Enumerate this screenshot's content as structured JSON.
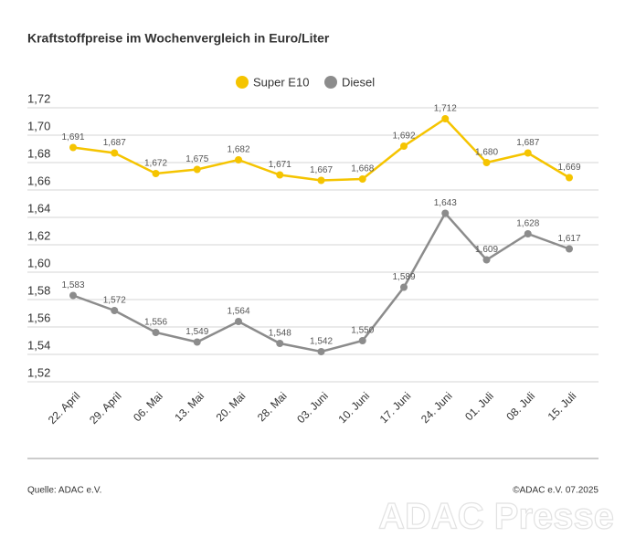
{
  "chart_data": {
    "type": "line",
    "title": "Kraftstoffpreise im Wochenvergleich in Euro/Liter",
    "categories": [
      "22. April",
      "29. April",
      "06. Mai",
      "13. Mai",
      "20. Mai",
      "28. Mai",
      "03. Juni",
      "10. Juni",
      "17. Juni",
      "24. Juni",
      "01. Juli",
      "08. Juli",
      "15. Juli"
    ],
    "series": [
      {
        "name": "Super E10",
        "color": "#f5c400",
        "values": [
          1.691,
          1.687,
          1.672,
          1.675,
          1.682,
          1.671,
          1.667,
          1.668,
          1.692,
          1.712,
          1.68,
          1.687,
          1.669
        ],
        "value_labels": [
          "1,691",
          "1,687",
          "1,672",
          "1,675",
          "1,682",
          "1,671",
          "1,667",
          "1,668",
          "1,692",
          "1,712",
          "1,680",
          "1,687",
          "1,669"
        ]
      },
      {
        "name": "Diesel",
        "color": "#8c8c8c",
        "values": [
          1.583,
          1.572,
          1.556,
          1.549,
          1.564,
          1.548,
          1.542,
          1.55,
          1.589,
          1.643,
          1.609,
          1.628,
          1.617
        ],
        "value_labels": [
          "1,583",
          "1,572",
          "1,556",
          "1,549",
          "1,564",
          "1,548",
          "1,542",
          "1,550",
          "1,589",
          "1,643",
          "1,609",
          "1,628",
          "1,617"
        ]
      }
    ],
    "ylim": [
      1.52,
      1.72
    ],
    "yticks": [
      {
        "value": 1.52,
        "label": "1,52"
      },
      {
        "value": 1.54,
        "label": "1,54"
      },
      {
        "value": 1.56,
        "label": "1,56"
      },
      {
        "value": 1.58,
        "label": "1,58"
      },
      {
        "value": 1.6,
        "label": "1,60"
      },
      {
        "value": 1.62,
        "label": "1,62"
      },
      {
        "value": 1.64,
        "label": "1,64"
      },
      {
        "value": 1.66,
        "label": "1,66"
      },
      {
        "value": 1.68,
        "label": "1,68"
      },
      {
        "value": 1.7,
        "label": "1,70"
      },
      {
        "value": 1.72,
        "label": "1,72"
      }
    ],
    "grid": true,
    "legend": "top",
    "source": "Quelle: ADAC e.V.",
    "copyright": "©ADAC e.V. 07.2025",
    "watermark": "ADAC Presse"
  }
}
